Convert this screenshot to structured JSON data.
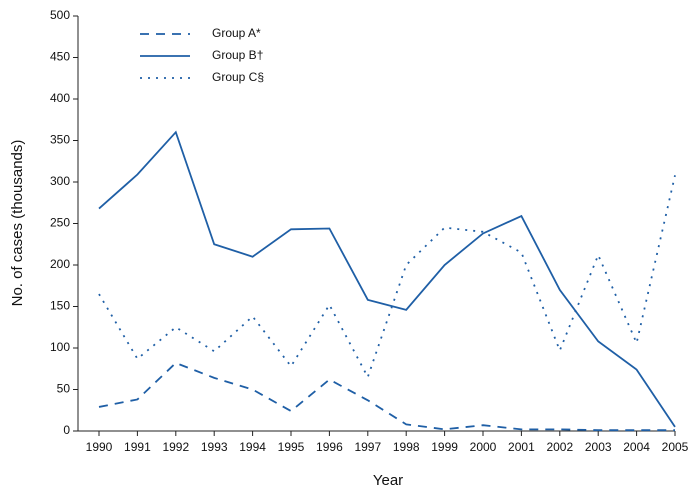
{
  "chart_data": {
    "type": "line",
    "x_label": "Year",
    "y_label": "No. of cases (thousands)",
    "x": [
      1990,
      1991,
      1992,
      1993,
      1994,
      1995,
      1996,
      1997,
      1998,
      1999,
      2000,
      2001,
      2002,
      2003,
      2004,
      2005
    ],
    "xlim": [
      1990,
      2005
    ],
    "xticks": [
      1990,
      1991,
      1992,
      1993,
      1994,
      1995,
      1996,
      1997,
      1998,
      1999,
      2000,
      2001,
      2002,
      2003,
      2004,
      2005
    ],
    "ylim": [
      0,
      500
    ],
    "yticks": [
      0,
      50,
      100,
      150,
      200,
      250,
      300,
      350,
      400,
      450,
      500
    ],
    "legend": "top-left",
    "series": [
      {
        "name": "Group A*",
        "color": "#1f5fa6",
        "dash": "dashed",
        "values": [
          29,
          38,
          82,
          64,
          50,
          24,
          62,
          37,
          8,
          2,
          7,
          2,
          2,
          1,
          1,
          1
        ]
      },
      {
        "name": "Group B†",
        "color": "#1f5fa6",
        "dash": "solid",
        "values": [
          268,
          309,
          360,
          225,
          210,
          243,
          244,
          158,
          146,
          200,
          238,
          259,
          170,
          108,
          74,
          5
        ]
      },
      {
        "name": "Group C§",
        "color": "#1f5fa6",
        "dash": "dotted",
        "values": [
          165,
          87,
          125,
          96,
          138,
          78,
          152,
          65,
          200,
          245,
          240,
          215,
          97,
          212,
          106,
          308
        ]
      }
    ]
  }
}
